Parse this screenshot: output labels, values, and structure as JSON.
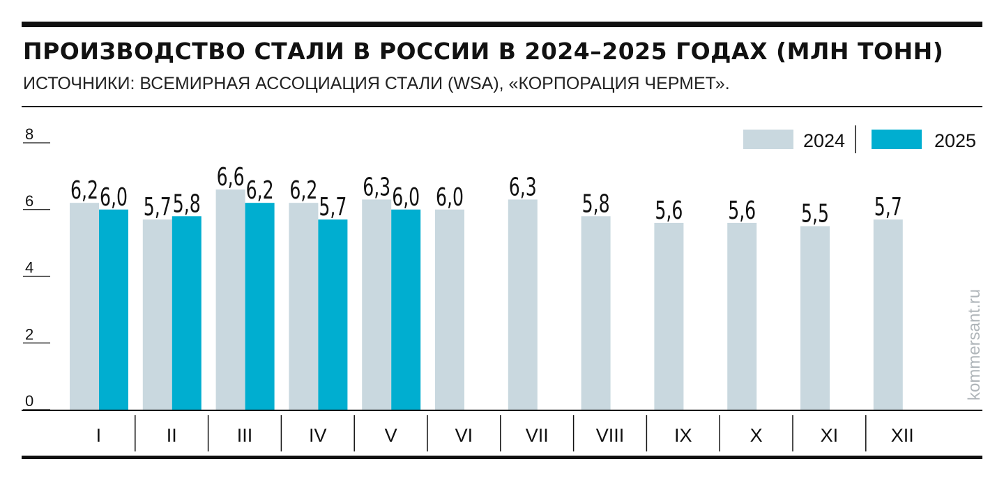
{
  "header": {
    "title": "ПРОИЗВОДСТВО СТАЛИ В РОССИИ В 2024–2025 ГОДАХ (МЛН ТОНН)",
    "subtitle": "ИСТОЧНИКИ: ВСЕМИРНАЯ АССОЦИАЦИЯ СТАЛИ (WSA), «КОРПОРАЦИЯ ЧЕРМЕТ»."
  },
  "watermark": "kommersant.ru",
  "colors": {
    "series_2024": "#c9d8df",
    "series_2025": "#00aed0",
    "axis": "#111111"
  },
  "chart_data": {
    "type": "bar",
    "categories": [
      "I",
      "II",
      "III",
      "IV",
      "V",
      "VI",
      "VII",
      "VIII",
      "IX",
      "X",
      "XI",
      "XII"
    ],
    "series": [
      {
        "name": "2024",
        "values": [
          6.2,
          5.7,
          6.6,
          6.2,
          6.3,
          6.0,
          6.3,
          5.8,
          5.6,
          5.6,
          5.5,
          5.7
        ],
        "labels": [
          "6,2",
          "5,7",
          "6,6",
          "6,2",
          "6,3",
          "6,0",
          "6,3",
          "5,8",
          "5,6",
          "5,6",
          "5,5",
          "5,7"
        ]
      },
      {
        "name": "2025",
        "values": [
          6.0,
          5.8,
          6.2,
          5.7,
          6.0,
          null,
          null,
          null,
          null,
          null,
          null,
          null
        ],
        "labels": [
          "6,0",
          "5,8",
          "6,2",
          "5,7",
          "6,0",
          null,
          null,
          null,
          null,
          null,
          null,
          null
        ]
      }
    ],
    "title": "ПРОИЗВОДСТВО СТАЛИ В РОССИИ В 2024–2025 ГОДАХ (МЛН ТОНН)",
    "xlabel": "",
    "ylabel": "",
    "ylim": [
      0,
      8
    ],
    "yticks": [
      0,
      2,
      4,
      6,
      8
    ],
    "legend_position": "top-right",
    "grid": false
  }
}
